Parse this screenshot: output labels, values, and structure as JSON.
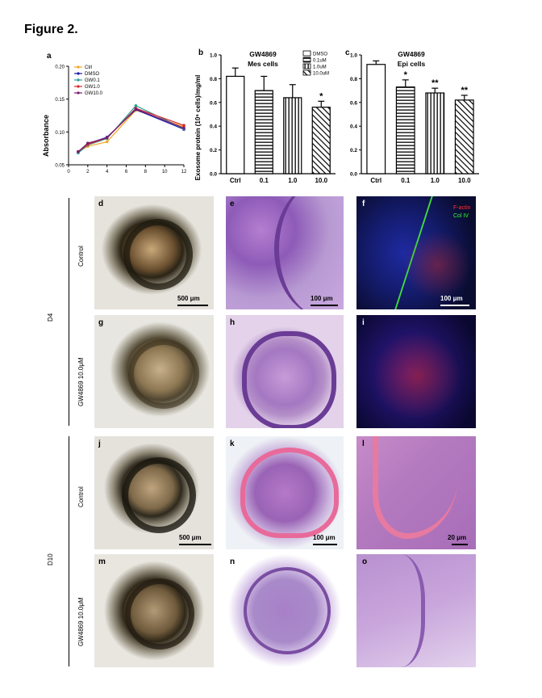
{
  "figure_title": "Figure 2.",
  "panel_a": {
    "letter": "a",
    "ylabel": "Absorbance",
    "yticks": [
      "0.20",
      "0.15",
      "0.10",
      "0.05"
    ],
    "xticks": [
      "0",
      "2",
      "4",
      "6",
      "8",
      "10",
      "12"
    ]
  },
  "panel_b": {
    "letter": "b",
    "title_line1": "GW4869",
    "title_line2": "Mes cells",
    "ylabel": "Exosome protein (10⁶ cells)/mg/ml",
    "legend": [
      "DMSO",
      "0.1uM",
      "1.0uM",
      "10.0uM"
    ],
    "sig": [
      "",
      "",
      "",
      "*"
    ]
  },
  "panel_c": {
    "letter": "c",
    "title_line1": "GW4869",
    "title_line2": "Epi cells",
    "sig": [
      "",
      "*",
      "**",
      "**"
    ]
  },
  "chart_data": [
    {
      "type": "line",
      "panel": "a",
      "ylabel": "Absorbance",
      "ylim": [
        0.05,
        0.2
      ],
      "xlim": [
        0,
        12
      ],
      "x": [
        1,
        2,
        4,
        7,
        12
      ],
      "series": [
        {
          "name": "Ctrl",
          "color": "#f5a623",
          "values": [
            0.07,
            0.078,
            0.085,
            0.133,
            0.108
          ]
        },
        {
          "name": "DMSO",
          "color": "#1a1aa6",
          "values": [
            0.069,
            0.082,
            0.092,
            0.134,
            0.104
          ]
        },
        {
          "name": "GW0.1",
          "color": "#2aa198",
          "values": [
            0.068,
            0.08,
            0.09,
            0.14,
            0.105
          ]
        },
        {
          "name": "GW1.0",
          "color": "#d62728",
          "values": [
            0.07,
            0.081,
            0.091,
            0.136,
            0.11
          ]
        },
        {
          "name": "GW10.0",
          "color": "#7a1f6e",
          "values": [
            0.07,
            0.083,
            0.091,
            0.135,
            0.106
          ]
        }
      ]
    },
    {
      "type": "bar",
      "panel": "b",
      "title": "GW4869 Mes cells",
      "ylabel": "Exosome protein (10⁶ cells)/mg/ml",
      "categories": [
        "Ctrl",
        "0.1",
        "1.0",
        "10.0"
      ],
      "values": [
        0.82,
        0.7,
        0.64,
        0.56
      ],
      "errors": [
        0.07,
        0.12,
        0.11,
        0.05
      ],
      "ylim": [
        0,
        1.0
      ],
      "yticks": [
        "0.0",
        "0.2",
        "0.4",
        "0.6",
        "0.8",
        "1.0"
      ]
    },
    {
      "type": "bar",
      "panel": "c",
      "title": "GW4869 Epi cells",
      "categories": [
        "Ctrl",
        "0.1",
        "1.0",
        "10.0"
      ],
      "values": [
        0.92,
        0.73,
        0.68,
        0.62
      ],
      "errors": [
        0.03,
        0.06,
        0.04,
        0.04
      ],
      "ylim": [
        0,
        1.0
      ],
      "yticks": [
        "0.0",
        "0.2",
        "0.4",
        "0.6",
        "0.8",
        "1.0"
      ]
    }
  ],
  "photo_panels": {
    "d": "d",
    "e": "e",
    "f": "f",
    "g": "g",
    "h": "h",
    "i": "i",
    "j": "j",
    "k": "k",
    "l": "l",
    "m": "m",
    "n": "n",
    "o": "o"
  },
  "scale_labels": {
    "d": "500 μm",
    "e": "100 μm",
    "f": "100 μm",
    "j": "500 μm",
    "k": "100 μm",
    "l": "20 μm"
  },
  "fluor_legend": {
    "red": "F-actin",
    "green": "Col IV"
  },
  "row_labels": {
    "control": "Control",
    "treatment": "GW4869 10.0μM",
    "d4": "D4",
    "d10": "D10"
  }
}
